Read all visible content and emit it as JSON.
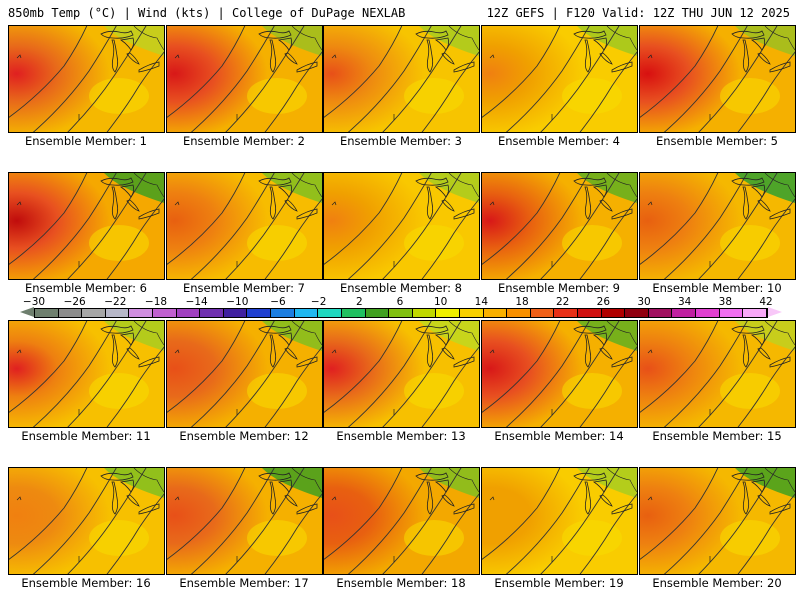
{
  "header": {
    "left_title": "850mb Temp (°C) | Wind (kts) | College of DuPage NEXLAB",
    "right_title": "12Z GEFS | F120 Valid: 12Z THU JUN 12 2025"
  },
  "colorbar": {
    "labels": [
      "−30",
      "−26",
      "−22",
      "−18",
      "−14",
      "−10",
      "−6",
      "−2",
      "2",
      "6",
      "10",
      "14",
      "18",
      "22",
      "26",
      "30",
      "34",
      "38",
      "42"
    ],
    "colors": [
      "#6e7f6e",
      "#8c8c8c",
      "#a6a6a6",
      "#b7b7c8",
      "#d08ee0",
      "#c060d0",
      "#a040c0",
      "#7030b0",
      "#4020a0",
      "#2040d0",
      "#1c7ee0",
      "#20b8f0",
      "#20d8c0",
      "#20c060",
      "#40a020",
      "#80c010",
      "#c0d800",
      "#f0f000",
      "#f8d000",
      "#f8b000",
      "#f89000",
      "#f06018",
      "#e83018",
      "#d01010",
      "#b00000",
      "#900010",
      "#a01060",
      "#c020a0",
      "#e040d0",
      "#f070f0",
      "#f8a8f8"
    ],
    "arrow_left_color": "#6e7f6e",
    "arrow_right_color": "#f8c8f8"
  },
  "panels": [
    {
      "caption": "Ensemble Member: 1",
      "base": "#f5b800",
      "accent": "#e86a1a",
      "green": "#c0d020",
      "hot": "#e02020"
    },
    {
      "caption": "Ensemble Member: 2",
      "base": "#f5b000",
      "accent": "#e85020",
      "green": "#9cc020",
      "hot": "#d81818"
    },
    {
      "caption": "Ensemble Member: 3",
      "base": "#f7c400",
      "accent": "#ee8a10",
      "green": "#a8cc20",
      "hot": "#e85018"
    },
    {
      "caption": "Ensemble Member: 4",
      "base": "#f9cc00",
      "accent": "#f0a000",
      "green": "#a0c820",
      "hot": "#f08010"
    },
    {
      "caption": "Ensemble Member: 5",
      "base": "#f5b000",
      "accent": "#e85020",
      "green": "#9cc020",
      "hot": "#d81010"
    },
    {
      "caption": "Ensemble Member: 6",
      "base": "#f5a800",
      "accent": "#e85020",
      "green": "#40a020",
      "hot": "#c00c0c"
    },
    {
      "caption": "Ensemble Member: 7",
      "base": "#f7bc00",
      "accent": "#ee8010",
      "green": "#80c020",
      "hot": "#e86010"
    },
    {
      "caption": "Ensemble Member: 8",
      "base": "#f9c800",
      "accent": "#f0a000",
      "green": "#a8cc20",
      "hot": "#f08010"
    },
    {
      "caption": "Ensemble Member: 9",
      "base": "#f5b000",
      "accent": "#e86010",
      "green": "#60b020",
      "hot": "#d81818"
    },
    {
      "caption": "Ensemble Member: 10",
      "base": "#f5b800",
      "accent": "#ee8010",
      "green": "#30a030",
      "hot": "#e86010"
    },
    {
      "caption": "Ensemble Member: 11",
      "base": "#f7c000",
      "accent": "#ee8010",
      "green": "#a8cc20",
      "hot": "#e02020"
    },
    {
      "caption": "Ensemble Member: 12",
      "base": "#f5b000",
      "accent": "#e86a1a",
      "green": "#80c020",
      "hot": "#e85018"
    },
    {
      "caption": "Ensemble Member: 13",
      "base": "#f7c000",
      "accent": "#e86a1a",
      "green": "#c0d820",
      "hot": "#e02020"
    },
    {
      "caption": "Ensemble Member: 14",
      "base": "#f5b000",
      "accent": "#e85020",
      "green": "#60b020",
      "hot": "#d81818"
    },
    {
      "caption": "Ensemble Member: 15",
      "base": "#f5b800",
      "accent": "#ee8010",
      "green": "#c0d020",
      "hot": "#e85018"
    },
    {
      "caption": "Ensemble Member: 16",
      "base": "#f7c000",
      "accent": "#ee8a10",
      "green": "#80c020",
      "hot": "#f08010"
    },
    {
      "caption": "Ensemble Member: 17",
      "base": "#f5b000",
      "accent": "#e86a1a",
      "green": "#40a020",
      "hot": "#e85018"
    },
    {
      "caption": "Ensemble Member: 18",
      "base": "#f3a800",
      "accent": "#e86010",
      "green": "#80c020",
      "hot": "#e85018"
    },
    {
      "caption": "Ensemble Member: 19",
      "base": "#f9cc00",
      "accent": "#f0a000",
      "green": "#a8cc20",
      "hot": "#f0a000"
    },
    {
      "caption": "Ensemble Member: 20",
      "base": "#f5b800",
      "accent": "#ee8010",
      "green": "#40a020",
      "hot": "#e86010"
    }
  ]
}
